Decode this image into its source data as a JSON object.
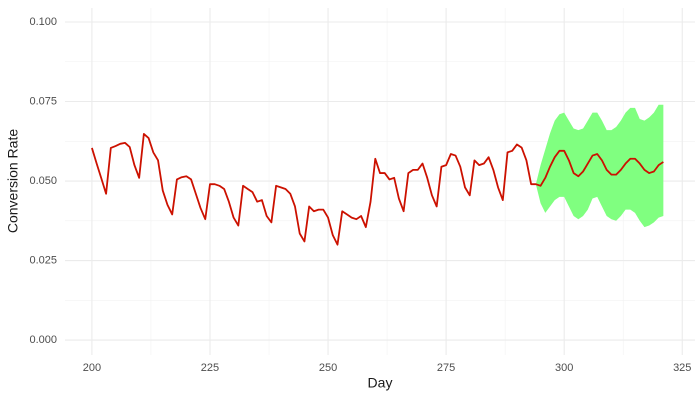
{
  "chart_data": {
    "type": "line",
    "xlabel": "Day",
    "ylabel": "Conversion Rate",
    "x": [
      200,
      201,
      202,
      203,
      204,
      205,
      206,
      207,
      208,
      209,
      210,
      211,
      212,
      213,
      214,
      215,
      216,
      217,
      218,
      219,
      220,
      221,
      222,
      223,
      224,
      225,
      226,
      227,
      228,
      229,
      230,
      231,
      232,
      233,
      234,
      235,
      236,
      237,
      238,
      239,
      240,
      241,
      242,
      243,
      244,
      245,
      246,
      247,
      248,
      249,
      250,
      251,
      252,
      253,
      254,
      255,
      256,
      257,
      258,
      259,
      260,
      261,
      262,
      263,
      264,
      265,
      266,
      267,
      268,
      269,
      270,
      271,
      272,
      273,
      274,
      275,
      276,
      277,
      278,
      279,
      280,
      281,
      282,
      283,
      284,
      285,
      286,
      287,
      288,
      289,
      290,
      291,
      292,
      293,
      294,
      295,
      296,
      297,
      298,
      299,
      300,
      301,
      302,
      303,
      304,
      305,
      306,
      307,
      308,
      309,
      310,
      311,
      312,
      313,
      314,
      315,
      316,
      317,
      318,
      319,
      320,
      321
    ],
    "values": [
      0.0604,
      0.0555,
      0.0508,
      0.046,
      0.0604,
      0.061,
      0.0617,
      0.062,
      0.0607,
      0.055,
      0.051,
      0.0648,
      0.0635,
      0.059,
      0.0565,
      0.047,
      0.0425,
      0.0395,
      0.0505,
      0.0512,
      0.0515,
      0.0505,
      0.046,
      0.0415,
      0.038,
      0.049,
      0.049,
      0.0485,
      0.0475,
      0.0435,
      0.0385,
      0.036,
      0.0485,
      0.0475,
      0.0465,
      0.0435,
      0.044,
      0.039,
      0.037,
      0.0485,
      0.048,
      0.0475,
      0.046,
      0.042,
      0.0335,
      0.031,
      0.042,
      0.0405,
      0.041,
      0.041,
      0.0385,
      0.033,
      0.03,
      0.0405,
      0.0395,
      0.0385,
      0.038,
      0.039,
      0.0355,
      0.0435,
      0.057,
      0.0525,
      0.0525,
      0.0505,
      0.051,
      0.0445,
      0.0405,
      0.0525,
      0.0535,
      0.0535,
      0.0555,
      0.051,
      0.0455,
      0.042,
      0.0545,
      0.055,
      0.0585,
      0.058,
      0.0545,
      0.048,
      0.0455,
      0.0565,
      0.055,
      0.0555,
      0.0575,
      0.0535,
      0.048,
      0.044,
      0.059,
      0.0595,
      0.0615,
      0.0605,
      0.0565,
      0.049,
      0.049,
      0.0485,
      0.051,
      0.0545,
      0.0575,
      0.0595,
      0.0595,
      0.0565,
      0.0525,
      0.0515,
      0.053,
      0.0555,
      0.058,
      0.0585,
      0.0565,
      0.0535,
      0.052,
      0.052,
      0.0535,
      0.0555,
      0.057,
      0.057,
      0.0555,
      0.0535,
      0.0525,
      0.053,
      0.055,
      0.056
    ],
    "color": "#cc1100",
    "band": {
      "color": "#80ff80",
      "x": [
        294,
        295,
        296,
        297,
        298,
        299,
        300,
        301,
        302,
        303,
        304,
        305,
        306,
        307,
        308,
        309,
        310,
        311,
        312,
        313,
        314,
        315,
        316,
        317,
        318,
        319,
        320,
        321
      ],
      "lower": [
        0.049,
        0.043,
        0.04,
        0.042,
        0.044,
        0.045,
        0.045,
        0.042,
        0.039,
        0.038,
        0.039,
        0.041,
        0.0445,
        0.045,
        0.042,
        0.039,
        0.038,
        0.0375,
        0.039,
        0.041,
        0.041,
        0.04,
        0.0375,
        0.0355,
        0.036,
        0.037,
        0.0385,
        0.039
      ],
      "upper": [
        0.049,
        0.055,
        0.06,
        0.065,
        0.069,
        0.071,
        0.0715,
        0.069,
        0.0665,
        0.066,
        0.0665,
        0.069,
        0.0715,
        0.0715,
        0.069,
        0.066,
        0.066,
        0.067,
        0.069,
        0.0715,
        0.073,
        0.073,
        0.0695,
        0.069,
        0.07,
        0.0715,
        0.074,
        0.074
      ]
    },
    "xlim": [
      194.3,
      327.7
    ],
    "ylim": [
      -0.0047,
      0.1044
    ],
    "xticks": [
      200,
      225,
      250,
      275,
      300,
      325
    ],
    "yticks": [
      {
        "value": 0,
        "label": "0.000"
      },
      {
        "value": 0.025,
        "label": "0.025"
      },
      {
        "value": 0.05,
        "label": "0.050"
      },
      {
        "value": 0.075,
        "label": "0.075"
      },
      {
        "value": 0.1,
        "label": "0.100"
      }
    ],
    "grid": true
  }
}
